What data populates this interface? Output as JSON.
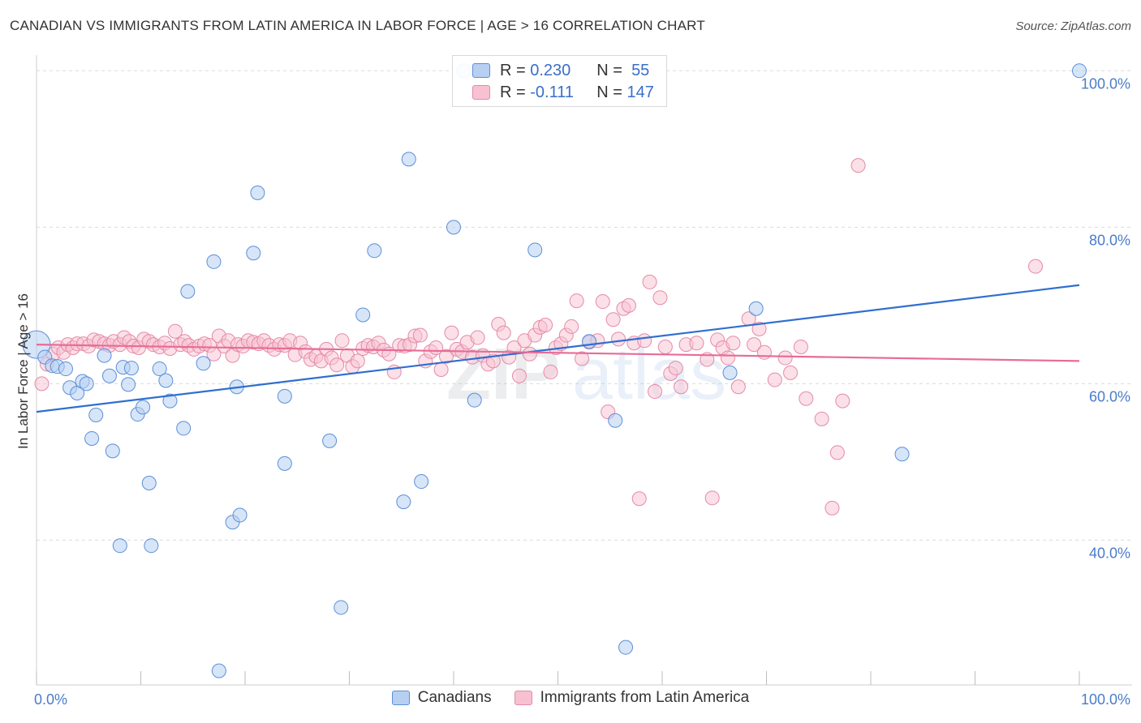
{
  "header": {
    "title": "CANADIAN VS IMMIGRANTS FROM LATIN AMERICA IN LABOR FORCE | AGE > 16 CORRELATION CHART",
    "source": "Source: ZipAtlas.com"
  },
  "colors": {
    "blue_fill": "#b7d0f2",
    "blue_stroke": "#5b8fd8",
    "blue_line": "#2f6fcf",
    "pink_fill": "#f7c1d2",
    "pink_stroke": "#e58aa8",
    "pink_line": "#e86b97",
    "tick_text": "#4a7cc9",
    "grid": "#dcdcdc"
  },
  "legend": {
    "r_label": "R =",
    "n_label": "N =",
    "rows": [
      {
        "r": "0.230",
        "n": "55"
      },
      {
        "r": "-0.111",
        "n": "147"
      }
    ]
  },
  "bottom_legend": [
    "Canadians",
    "Immigrants from Latin America"
  ],
  "chart_data": {
    "type": "scatter",
    "title": "CANADIAN VS IMMIGRANTS FROM LATIN AMERICA IN LABOR FORCE | AGE > 16 CORRELATION CHART",
    "xlabel": "",
    "ylabel": "In Labor Force | Age > 16",
    "xlim": [
      0,
      100
    ],
    "ylim": [
      21.5,
      102
    ],
    "x_tick_labels": [
      "0.0%",
      "100.0%"
    ],
    "y_ticks": [
      40,
      60,
      80,
      100
    ],
    "y_tick_labels": [
      "40.0%",
      "60.0%",
      "80.0%",
      "100.0%"
    ],
    "grid": true,
    "legend_position": "top-center",
    "watermark": "ZIPatlas",
    "series": [
      {
        "name": "Canadians",
        "r": 0.23,
        "n": 55,
        "trend": [
          [
            0,
            56.4
          ],
          [
            100,
            72.6
          ]
        ],
        "points": [
          [
            0.0,
            65.0
          ],
          [
            0.8,
            63.4
          ],
          [
            1.5,
            62.3
          ],
          [
            2.0,
            62.2
          ],
          [
            2.8,
            61.9
          ],
          [
            3.2,
            59.5
          ],
          [
            3.9,
            58.8
          ],
          [
            4.4,
            60.3
          ],
          [
            4.8,
            60.0
          ],
          [
            5.3,
            53.0
          ],
          [
            5.7,
            56.0
          ],
          [
            6.5,
            63.6
          ],
          [
            7.0,
            61.0
          ],
          [
            7.3,
            51.4
          ],
          [
            8.0,
            39.3
          ],
          [
            8.3,
            62.1
          ],
          [
            8.8,
            59.9
          ],
          [
            9.1,
            62.0
          ],
          [
            9.7,
            56.1
          ],
          [
            10.2,
            57.0
          ],
          [
            10.8,
            47.3
          ],
          [
            11.0,
            39.3
          ],
          [
            11.8,
            61.9
          ],
          [
            12.4,
            60.4
          ],
          [
            12.8,
            57.8
          ],
          [
            14.1,
            54.3
          ],
          [
            14.5,
            71.8
          ],
          [
            16.0,
            62.6
          ],
          [
            17.0,
            75.6
          ],
          [
            17.5,
            23.3
          ],
          [
            18.8,
            42.3
          ],
          [
            19.2,
            59.6
          ],
          [
            19.5,
            43.2
          ],
          [
            20.8,
            76.7
          ],
          [
            21.2,
            84.4
          ],
          [
            23.8,
            58.4
          ],
          [
            23.8,
            49.8
          ],
          [
            28.1,
            52.7
          ],
          [
            29.2,
            31.4
          ],
          [
            31.3,
            68.8
          ],
          [
            32.4,
            77.0
          ],
          [
            35.2,
            44.9
          ],
          [
            35.7,
            88.7
          ],
          [
            36.9,
            47.5
          ],
          [
            40.0,
            80.0
          ],
          [
            41.0,
            100.0
          ],
          [
            42.0,
            57.9
          ],
          [
            47.8,
            77.1
          ],
          [
            53.0,
            65.4
          ],
          [
            55.5,
            55.3
          ],
          [
            56.5,
            26.3
          ],
          [
            66.5,
            61.4
          ],
          [
            69.0,
            69.6
          ],
          [
            83.0,
            51.0
          ],
          [
            100.0,
            100.0
          ]
        ]
      },
      {
        "name": "Immigrants from Latin America",
        "r": -0.111,
        "n": 147,
        "trend": [
          [
            0,
            65.0
          ],
          [
            100,
            62.9
          ]
        ],
        "points": [
          [
            0.5,
            60.0
          ],
          [
            1.0,
            62.5
          ],
          [
            1.6,
            63.8
          ],
          [
            2.1,
            64.6
          ],
          [
            2.6,
            64.0
          ],
          [
            3.0,
            65.0
          ],
          [
            3.5,
            64.6
          ],
          [
            3.9,
            65.1
          ],
          [
            4.5,
            65.1
          ],
          [
            5.0,
            64.8
          ],
          [
            5.5,
            65.6
          ],
          [
            6.0,
            65.4
          ],
          [
            6.5,
            65.1
          ],
          [
            7.0,
            64.9
          ],
          [
            7.4,
            65.4
          ],
          [
            8.0,
            65.0
          ],
          [
            8.4,
            65.9
          ],
          [
            8.9,
            65.4
          ],
          [
            9.3,
            64.8
          ],
          [
            9.8,
            64.6
          ],
          [
            10.3,
            65.7
          ],
          [
            10.8,
            65.4
          ],
          [
            11.2,
            65.0
          ],
          [
            11.8,
            64.7
          ],
          [
            12.3,
            65.2
          ],
          [
            12.8,
            64.5
          ],
          [
            13.3,
            66.7
          ],
          [
            13.8,
            65.0
          ],
          [
            14.2,
            65.4
          ],
          [
            14.6,
            64.9
          ],
          [
            15.1,
            64.4
          ],
          [
            15.6,
            64.8
          ],
          [
            16.1,
            65.1
          ],
          [
            16.6,
            64.9
          ],
          [
            17.0,
            63.8
          ],
          [
            17.5,
            66.1
          ],
          [
            18.0,
            64.8
          ],
          [
            18.4,
            65.5
          ],
          [
            18.8,
            63.6
          ],
          [
            19.3,
            65.0
          ],
          [
            19.8,
            64.8
          ],
          [
            20.3,
            65.5
          ],
          [
            20.8,
            65.3
          ],
          [
            21.3,
            65.1
          ],
          [
            21.8,
            65.5
          ],
          [
            22.3,
            64.9
          ],
          [
            22.8,
            64.4
          ],
          [
            23.3,
            65.0
          ],
          [
            23.8,
            64.9
          ],
          [
            24.3,
            65.5
          ],
          [
            24.8,
            63.7
          ],
          [
            25.3,
            65.2
          ],
          [
            25.8,
            64.1
          ],
          [
            26.3,
            63.1
          ],
          [
            26.8,
            63.5
          ],
          [
            27.3,
            62.9
          ],
          [
            27.8,
            64.4
          ],
          [
            28.3,
            63.3
          ],
          [
            28.8,
            62.4
          ],
          [
            29.3,
            65.5
          ],
          [
            29.8,
            63.6
          ],
          [
            30.3,
            62.2
          ],
          [
            30.8,
            62.9
          ],
          [
            31.3,
            64.5
          ],
          [
            31.8,
            64.9
          ],
          [
            32.3,
            64.7
          ],
          [
            32.8,
            65.2
          ],
          [
            33.3,
            64.3
          ],
          [
            33.8,
            63.8
          ],
          [
            34.3,
            61.5
          ],
          [
            34.8,
            64.9
          ],
          [
            35.3,
            64.8
          ],
          [
            35.8,
            65.0
          ],
          [
            36.3,
            66.1
          ],
          [
            36.8,
            66.2
          ],
          [
            37.3,
            62.9
          ],
          [
            37.8,
            64.1
          ],
          [
            38.3,
            64.6
          ],
          [
            38.8,
            61.8
          ],
          [
            39.3,
            63.5
          ],
          [
            39.8,
            66.5
          ],
          [
            40.3,
            64.4
          ],
          [
            40.8,
            64.1
          ],
          [
            41.3,
            65.3
          ],
          [
            41.8,
            63.4
          ],
          [
            42.3,
            65.9
          ],
          [
            42.8,
            63.6
          ],
          [
            43.3,
            62.5
          ],
          [
            43.8,
            62.9
          ],
          [
            44.3,
            67.6
          ],
          [
            44.8,
            66.5
          ],
          [
            45.3,
            63.4
          ],
          [
            45.8,
            64.6
          ],
          [
            46.3,
            61.0
          ],
          [
            46.8,
            65.5
          ],
          [
            47.3,
            63.8
          ],
          [
            47.8,
            66.2
          ],
          [
            48.3,
            67.2
          ],
          [
            48.8,
            67.5
          ],
          [
            49.3,
            61.5
          ],
          [
            49.8,
            64.6
          ],
          [
            50.3,
            65.1
          ],
          [
            50.8,
            66.2
          ],
          [
            51.3,
            67.3
          ],
          [
            51.8,
            70.6
          ],
          [
            52.3,
            63.2
          ],
          [
            53.0,
            65.3
          ],
          [
            53.8,
            65.5
          ],
          [
            54.3,
            70.5
          ],
          [
            54.8,
            56.4
          ],
          [
            55.3,
            68.2
          ],
          [
            55.8,
            65.7
          ],
          [
            56.3,
            69.6
          ],
          [
            56.8,
            70.0
          ],
          [
            57.3,
            65.2
          ],
          [
            57.8,
            45.3
          ],
          [
            58.3,
            65.5
          ],
          [
            58.8,
            73.0
          ],
          [
            59.3,
            59.0
          ],
          [
            59.8,
            71.0
          ],
          [
            60.3,
            64.7
          ],
          [
            60.8,
            61.3
          ],
          [
            61.3,
            62.0
          ],
          [
            61.8,
            59.6
          ],
          [
            62.3,
            65.0
          ],
          [
            63.3,
            65.2
          ],
          [
            64.3,
            63.1
          ],
          [
            64.8,
            45.4
          ],
          [
            65.3,
            65.6
          ],
          [
            65.8,
            64.6
          ],
          [
            66.3,
            63.3
          ],
          [
            66.8,
            65.2
          ],
          [
            67.3,
            59.6
          ],
          [
            68.3,
            68.3
          ],
          [
            68.8,
            65.0
          ],
          [
            69.3,
            67.0
          ],
          [
            69.8,
            64.0
          ],
          [
            70.8,
            60.5
          ],
          [
            71.8,
            63.3
          ],
          [
            72.3,
            61.4
          ],
          [
            73.3,
            64.7
          ],
          [
            73.8,
            58.1
          ],
          [
            75.3,
            55.5
          ],
          [
            76.3,
            44.1
          ],
          [
            76.8,
            51.2
          ],
          [
            77.3,
            57.8
          ],
          [
            78.8,
            87.9
          ],
          [
            95.8,
            75.0
          ]
        ]
      }
    ]
  }
}
